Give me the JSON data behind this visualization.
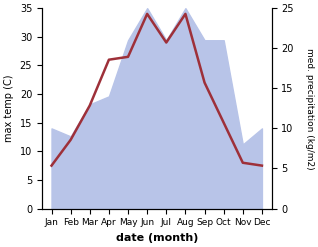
{
  "months": [
    "Jan",
    "Feb",
    "Mar",
    "Apr",
    "May",
    "Jun",
    "Jul",
    "Aug",
    "Sep",
    "Oct",
    "Nov",
    "Dec"
  ],
  "temperature": [
    7.5,
    12,
    18,
    26,
    26.5,
    34,
    29,
    34,
    22,
    15,
    8,
    7.5
  ],
  "precipitation": [
    10,
    9,
    13,
    14,
    21,
    25,
    21,
    25,
    21,
    21,
    8,
    10
  ],
  "temp_color": "#9e3039",
  "precip_color": "#b8c4e8",
  "xlabel": "date (month)",
  "ylabel_left": "max temp (C)",
  "ylabel_right": "med. precipitation (kg/m2)",
  "ylim_left": [
    0,
    35
  ],
  "ylim_right": [
    0,
    25
  ],
  "yticks_left": [
    0,
    5,
    10,
    15,
    20,
    25,
    30,
    35
  ],
  "yticks_right": [
    0,
    5,
    10,
    15,
    20,
    25
  ],
  "bg_color": "#ffffff",
  "line_width": 1.8
}
